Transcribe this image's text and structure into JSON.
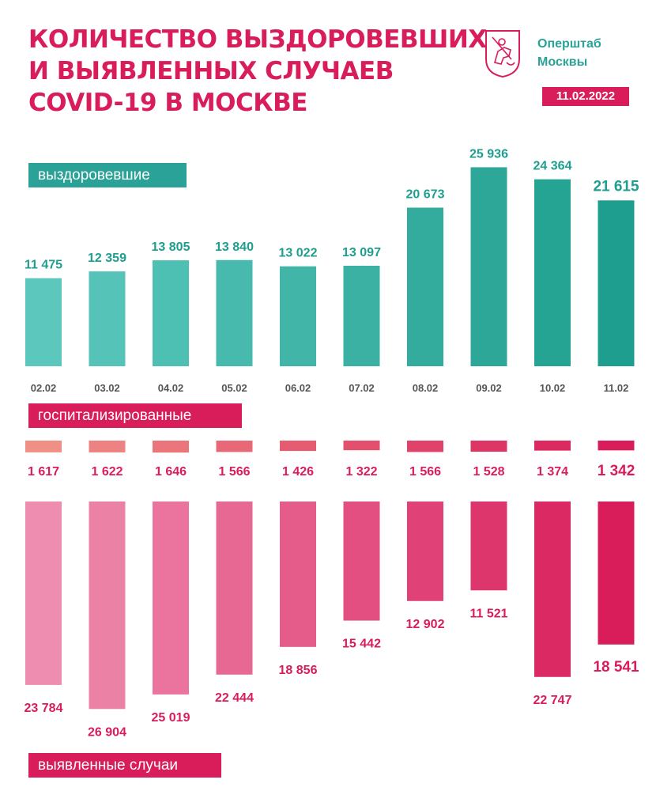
{
  "header": {
    "title_lines": [
      "КОЛИЧЕСТВО ВЫЗДОРОВЕВШИХ",
      "И ВЫЯВЛЕННЫХ СЛУЧАЕВ",
      "COVID-19 В МОСКВЕ"
    ],
    "brand_lines": [
      "Оперштаб",
      "Москвы"
    ],
    "date": "11.02.2022",
    "logo_icon": "moscow-coat-of-arms-icon"
  },
  "labels": {
    "recovered": "выздоровевшие",
    "hospitalized": "госпитализированные",
    "new_cases": "выявленные случаи"
  },
  "colors": {
    "teal_light": "#5cc8bd",
    "teal_dark": "#1e9e8e",
    "pink_light": "#ef8db0",
    "pink_dark": "#d81d5a",
    "salmon_light": "#ef8f86",
    "accent": "#d81d5a"
  },
  "chart_data": [
    {
      "type": "bar",
      "title": "выздоровевшие",
      "categories": [
        "02.02",
        "03.02",
        "04.02",
        "05.02",
        "06.02",
        "07.02",
        "08.02",
        "09.02",
        "10.02",
        "11.02"
      ],
      "values": [
        11475,
        12359,
        13805,
        13840,
        13022,
        13097,
        20673,
        25936,
        24364,
        21615
      ],
      "value_labels": [
        "11 475",
        "12 359",
        "13 805",
        "13 840",
        "13 022",
        "13 097",
        "20 673",
        "25 936",
        "24 364",
        "21 615"
      ]
    },
    {
      "type": "bar",
      "title": "госпитализированные",
      "categories": [
        "02.02",
        "03.02",
        "04.02",
        "05.02",
        "06.02",
        "07.02",
        "08.02",
        "09.02",
        "10.02",
        "11.02"
      ],
      "values": [
        1617,
        1622,
        1646,
        1566,
        1426,
        1322,
        1566,
        1528,
        1374,
        1342
      ],
      "value_labels": [
        "1 617",
        "1 622",
        "1 646",
        "1 566",
        "1 426",
        "1 322",
        "1 566",
        "1 528",
        "1 374",
        "1 342"
      ]
    },
    {
      "type": "bar",
      "title": "выявленные случаи",
      "categories": [
        "02.02",
        "03.02",
        "04.02",
        "05.02",
        "06.02",
        "07.02",
        "08.02",
        "09.02",
        "10.02",
        "11.02"
      ],
      "values": [
        23784,
        26904,
        25019,
        22444,
        18856,
        15442,
        12902,
        11521,
        22747,
        18541
      ],
      "value_labels": [
        "23 784",
        "26 904",
        "25 019",
        "22 444",
        "18 856",
        "15 442",
        "12 902",
        "11 521",
        "22 747",
        "18 541"
      ]
    }
  ]
}
